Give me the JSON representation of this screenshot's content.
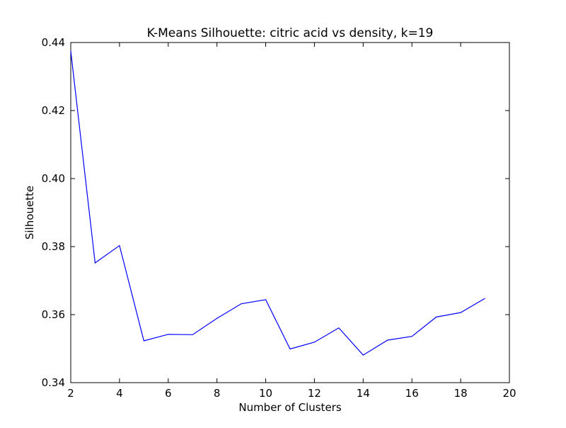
{
  "chart_data": {
    "type": "line",
    "title": "K-Means Silhouette: citric acid vs density, k=19",
    "xlabel": "Number of Clusters",
    "ylabel": "Silhouette",
    "xlim": [
      2,
      20
    ],
    "ylim": [
      0.34,
      0.44
    ],
    "xticks": [
      2,
      4,
      6,
      8,
      10,
      12,
      14,
      16,
      18,
      20
    ],
    "xtick_labels": [
      "2",
      "4",
      "6",
      "8",
      "10",
      "12",
      "14",
      "16",
      "18",
      "20"
    ],
    "yticks": [
      0.34,
      0.36,
      0.38,
      0.4,
      0.42,
      0.44
    ],
    "ytick_labels": [
      "0.34",
      "0.36",
      "0.38",
      "0.40",
      "0.42",
      "0.44"
    ],
    "grid": false,
    "series": [
      {
        "color": "#0000ff",
        "x": [
          2,
          3,
          4,
          5,
          6,
          7,
          8,
          9,
          10,
          11,
          12,
          13,
          14,
          15,
          16,
          17,
          18,
          19
        ],
        "y": [
          0.4375,
          0.3752,
          0.3803,
          0.3523,
          0.3542,
          0.3541,
          0.3589,
          0.3632,
          0.3644,
          0.3499,
          0.3519,
          0.3561,
          0.3481,
          0.3525,
          0.3536,
          0.3593,
          0.3606,
          0.3648
        ]
      }
    ]
  }
}
